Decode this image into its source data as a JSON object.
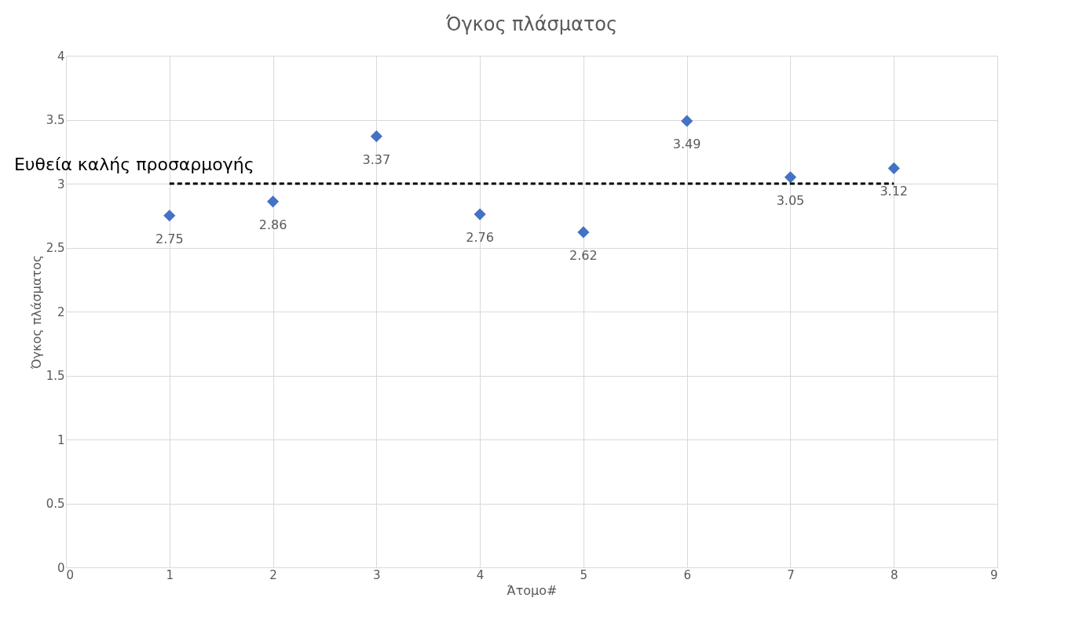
{
  "chart_data": {
    "type": "scatter",
    "title": "Όγκος πλάσματος",
    "xlabel": "Άτομο#",
    "ylabel": "Όγκος πλάσματος",
    "x": [
      1,
      2,
      3,
      4,
      5,
      6,
      7,
      8
    ],
    "series": [
      {
        "color": "#4472c4",
        "values": [
          2.75,
          2.86,
          3.37,
          2.76,
          2.62,
          3.49,
          3.05,
          3.12
        ],
        "value_labels": [
          "2.75",
          "2.86",
          "3.37",
          "2.76",
          "2.62",
          "3.49",
          "3.05",
          "3.12"
        ]
      },
      {
        "type": "line",
        "name": "Ευθεία καλής προσαρμογής",
        "color": "#000000",
        "line_style": "dashed",
        "marker": "none",
        "x": [
          1,
          8
        ],
        "values": [
          3.0,
          3.0
        ]
      }
    ],
    "marker": "diamond",
    "xlim": [
      0,
      9
    ],
    "xticks": [
      0,
      1,
      2,
      3,
      4,
      5,
      6,
      7,
      8,
      9
    ],
    "ylim": [
      0,
      4
    ],
    "yticks": [
      0,
      0.5,
      1,
      1.5,
      2,
      2.5,
      3,
      3.5,
      4
    ],
    "grid": true
  }
}
